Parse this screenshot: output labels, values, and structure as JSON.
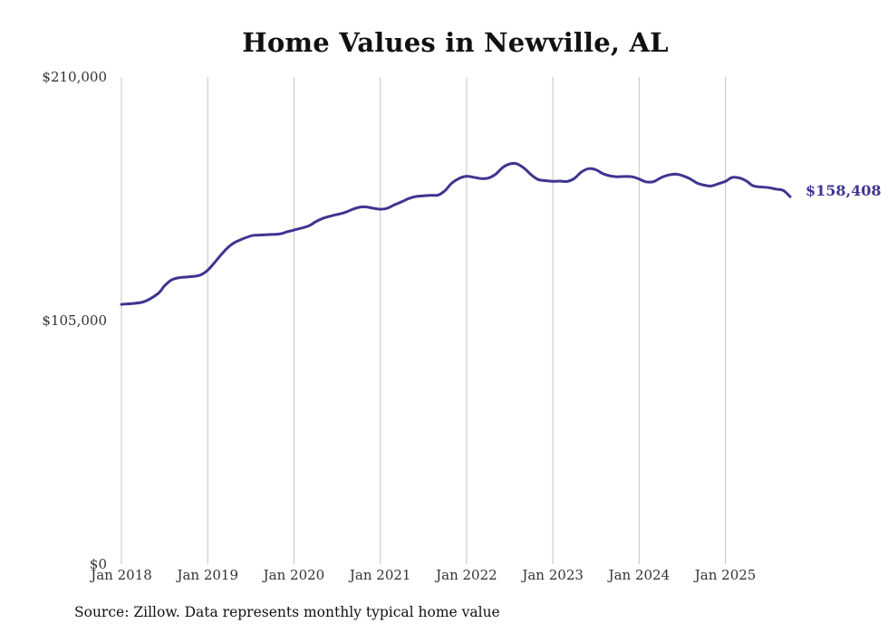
{
  "chart_data": {
    "type": "line",
    "title": "Home Values in Newville, AL",
    "xlabel": "",
    "ylabel": "",
    "ylim": [
      0,
      210000
    ],
    "yticks": [
      {
        "value": 210000,
        "label": "$210,000"
      },
      {
        "value": 105000,
        "label": "$105,000"
      },
      {
        "value": 0,
        "label": "$0"
      }
    ],
    "xticks": [
      {
        "value": 2018,
        "label": "Jan 2018"
      },
      {
        "value": 2019,
        "label": "Jan 2019"
      },
      {
        "value": 2020,
        "label": "Jan 2020"
      },
      {
        "value": 2021,
        "label": "Jan 2021"
      },
      {
        "value": 2022,
        "label": "Jan 2022"
      },
      {
        "value": 2023,
        "label": "Jan 2023"
      },
      {
        "value": 2024,
        "label": "Jan 2024"
      },
      {
        "value": 2025,
        "label": "Jan 2025"
      }
    ],
    "xlim": [
      2018,
      2025.75
    ],
    "grid": "vertical",
    "series": [
      {
        "name": "Typical home value",
        "color": "#3e3590",
        "x": [
          2018.0,
          2018.25,
          2018.42,
          2018.5,
          2018.58,
          2018.67,
          2018.83,
          2018.92,
          2019.0,
          2019.08,
          2019.17,
          2019.25,
          2019.33,
          2019.5,
          2019.58,
          2019.67,
          2019.83,
          2019.92,
          2020.0,
          2020.17,
          2020.25,
          2020.33,
          2020.42,
          2020.58,
          2020.67,
          2020.75,
          2020.83,
          2020.92,
          2021.0,
          2021.08,
          2021.17,
          2021.25,
          2021.33,
          2021.42,
          2021.58,
          2021.67,
          2021.75,
          2021.83,
          2021.92,
          2022.0,
          2022.08,
          2022.17,
          2022.25,
          2022.33,
          2022.42,
          2022.5,
          2022.58,
          2022.67,
          2022.75,
          2022.83,
          2022.92,
          2023.0,
          2023.08,
          2023.17,
          2023.25,
          2023.33,
          2023.42,
          2023.5,
          2023.58,
          2023.67,
          2023.75,
          2023.83,
          2023.92,
          2024.0,
          2024.08,
          2024.17,
          2024.25,
          2024.33,
          2024.42,
          2024.5,
          2024.58,
          2024.67,
          2024.75,
          2024.83,
          2024.92,
          2025.0,
          2025.08,
          2025.17,
          2025.25,
          2025.33,
          2025.5,
          2025.58,
          2025.67,
          2025.75
        ],
        "values": [
          112000,
          113000,
          116500,
          120000,
          122500,
          123500,
          124000,
          124700,
          126700,
          130000,
          134000,
          137000,
          139000,
          141500,
          141800,
          142000,
          142300,
          143300,
          144000,
          145800,
          147600,
          149000,
          150000,
          151500,
          152800,
          153800,
          154000,
          153400,
          153000,
          153400,
          155000,
          156200,
          157600,
          158500,
          159000,
          159100,
          161000,
          164300,
          166400,
          167200,
          166800,
          166200,
          166400,
          167900,
          171000,
          172500,
          172600,
          170600,
          167800,
          165800,
          165300,
          165000,
          165100,
          165000,
          166300,
          169000,
          170500,
          170000,
          168300,
          167300,
          167000,
          167100,
          167000,
          166000,
          164800,
          164900,
          166500,
          167600,
          168100,
          167500,
          166300,
          164300,
          163400,
          163000,
          164000,
          165000,
          166700,
          166400,
          165000,
          163000,
          162300,
          161700,
          161100,
          158408
        ]
      }
    ],
    "end_label": "$158,408",
    "source": "Source: Zillow. Data represents monthly typical home value"
  }
}
